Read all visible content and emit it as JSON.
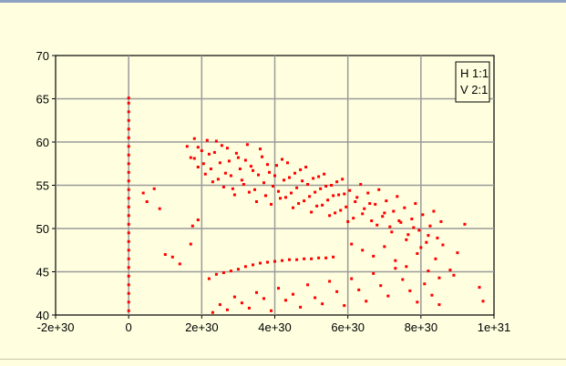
{
  "chart_data": {
    "type": "scatter",
    "title": "",
    "xlabel": "",
    "ylabel": "",
    "xlim": [
      -2e+30,
      1e+31
    ],
    "ylim": [
      40,
      70
    ],
    "x_ticks": [
      -2e+30,
      0,
      2e+30,
      4e+30,
      6e+30,
      8e+30,
      1e+31
    ],
    "x_tick_labels": [
      "-2e+30",
      "0",
      "2e+30",
      "4e+30",
      "6e+30",
      "8e+30",
      "1e+31"
    ],
    "y_ticks": [
      40,
      45,
      50,
      55,
      60,
      65,
      70
    ],
    "y_tick_labels": [
      "40",
      "45",
      "50",
      "55",
      "60",
      "65",
      "70"
    ],
    "grid": true,
    "point_color": "#ff0000",
    "legend": {
      "position": "top-right",
      "lines": [
        "H  1:1",
        "V  2:1"
      ]
    },
    "series": [
      {
        "points": [
          [
            0,
            40.5
          ],
          [
            0,
            41.5
          ],
          [
            0,
            42.5
          ],
          [
            0,
            43.5
          ],
          [
            0,
            44.5
          ],
          [
            0,
            45.5
          ],
          [
            0,
            46.5
          ],
          [
            0,
            47.5
          ],
          [
            0,
            48.5
          ],
          [
            0,
            49.5
          ],
          [
            0,
            50.5
          ],
          [
            0,
            51.5
          ],
          [
            0,
            52.5
          ],
          [
            0,
            53.5
          ],
          [
            0,
            54.5
          ],
          [
            0,
            55.5
          ],
          [
            0,
            56.5
          ],
          [
            0,
            57.5
          ],
          [
            0,
            58.5
          ],
          [
            0,
            59.5
          ],
          [
            0,
            60.5
          ],
          [
            0,
            61.5
          ],
          [
            0,
            62.5
          ],
          [
            0,
            63.5
          ],
          [
            0,
            64.5
          ],
          [
            0,
            65.1
          ],
          [
            1.6e+30,
            59.5
          ],
          [
            1.7e+30,
            58.2
          ],
          [
            1.8e+30,
            60.4
          ],
          [
            1.9e+30,
            57.1
          ],
          [
            2e+30,
            59.0
          ],
          [
            2.1e+30,
            56.3
          ],
          [
            2.2e+30,
            58.6
          ],
          [
            2.3e+30,
            55.4
          ],
          [
            2.4e+30,
            60.1
          ],
          [
            2.5e+30,
            57.6
          ],
          [
            2.6e+30,
            54.8
          ],
          [
            2.7e+30,
            59.3
          ],
          [
            2.8e+30,
            56.1
          ],
          [
            2.9e+30,
            53.9
          ],
          [
            3e+30,
            58.2
          ],
          [
            3.1e+30,
            55.6
          ],
          [
            3.2e+30,
            57.9
          ],
          [
            3.3e+30,
            54.2
          ],
          [
            3.4e+30,
            56.7
          ],
          [
            3.5e+30,
            53.1
          ],
          [
            3.6e+30,
            59.2
          ],
          [
            3.7e+30,
            55.3
          ],
          [
            3.8e+30,
            57.4
          ],
          [
            3.9e+30,
            52.8
          ],
          [
            4e+30,
            56.1
          ],
          [
            4.1e+30,
            54.3
          ],
          [
            4.2e+30,
            58.0
          ],
          [
            4.3e+30,
            53.6
          ],
          [
            4.4e+30,
            55.9
          ],
          [
            4.5e+30,
            52.4
          ],
          [
            4.6e+30,
            54.7
          ],
          [
            4.7e+30,
            56.8
          ],
          [
            4.8e+30,
            53.2
          ],
          [
            4.9e+30,
            55.1
          ],
          [
            5e+30,
            51.9
          ],
          [
            5.1e+30,
            54.2
          ],
          [
            5.2e+30,
            56.0
          ],
          [
            5.3e+30,
            52.7
          ],
          [
            5.4e+30,
            54.9
          ],
          [
            5.5e+30,
            51.5
          ],
          [
            5.6e+30,
            53.8
          ],
          [
            5.7e+30,
            55.4
          ],
          [
            5.8e+30,
            52.1
          ],
          [
            5.9e+30,
            54.0
          ],
          [
            6e+30,
            50.8
          ],
          [
            6.2e+30,
            53.1
          ],
          [
            6.4e+30,
            51.7
          ],
          [
            6.6e+30,
            52.9
          ],
          [
            6.8e+30,
            50.4
          ],
          [
            7e+30,
            51.8
          ],
          [
            7.2e+30,
            49.6
          ],
          [
            7.4e+30,
            50.9
          ],
          [
            7.6e+30,
            48.7
          ],
          [
            7.8e+30,
            50.1
          ],
          [
            8e+30,
            47.8
          ],
          [
            8.2e+30,
            49.2
          ],
          [
            8.4e+30,
            46.5
          ],
          [
            8.6e+30,
            48.1
          ],
          [
            9e+30,
            47.2
          ],
          [
            9.2e+30,
            50.5
          ],
          [
            9.6e+30,
            43.2
          ],
          [
            9.7e+30,
            41.6
          ],
          [
            1.8e+30,
            58.1
          ],
          [
            1.9e+30,
            59.4
          ],
          [
            2.05e+30,
            57.5
          ],
          [
            2.15e+30,
            60.2
          ],
          [
            2.25e+30,
            56.9
          ],
          [
            2.35e+30,
            58.8
          ],
          [
            2.45e+30,
            55.7
          ],
          [
            2.55e+30,
            59.6
          ],
          [
            2.65e+30,
            56.4
          ],
          [
            2.75e+30,
            57.8
          ],
          [
            2.85e+30,
            54.6
          ],
          [
            2.95e+30,
            58.7
          ],
          [
            3.05e+30,
            56.9
          ],
          [
            3.15e+30,
            55.1
          ],
          [
            3.25e+30,
            59.7
          ],
          [
            3.35e+30,
            57.2
          ],
          [
            3.45e+30,
            54.5
          ],
          [
            3.55e+30,
            56.2
          ],
          [
            3.65e+30,
            58.3
          ],
          [
            3.75e+30,
            53.8
          ],
          [
            3.85e+30,
            56.5
          ],
          [
            3.95e+30,
            54.9
          ],
          [
            4.05e+30,
            57.3
          ],
          [
            4.15e+30,
            53.5
          ],
          [
            4.25e+30,
            55.6
          ],
          [
            4.35e+30,
            57.6
          ],
          [
            4.45e+30,
            54.1
          ],
          [
            4.55e+30,
            56.4
          ],
          [
            4.65e+30,
            52.9
          ],
          [
            4.75e+30,
            55.5
          ],
          [
            4.85e+30,
            57.1
          ],
          [
            4.95e+30,
            53.7
          ],
          [
            5.05e+30,
            55.8
          ],
          [
            5.15e+30,
            52.6
          ],
          [
            5.25e+30,
            54.6
          ],
          [
            5.35e+30,
            56.3
          ],
          [
            5.45e+30,
            53.3
          ],
          [
            5.55e+30,
            55.0
          ],
          [
            5.65e+30,
            51.8
          ],
          [
            5.75e+30,
            53.9
          ],
          [
            5.85e+30,
            55.7
          ],
          [
            5.95e+30,
            52.5
          ],
          [
            6.05e+30,
            54.4
          ],
          [
            6.15e+30,
            51.2
          ],
          [
            6.25e+30,
            53.6
          ],
          [
            6.35e+30,
            55.1
          ],
          [
            6.45e+30,
            52.3
          ],
          [
            6.55e+30,
            54.1
          ],
          [
            6.65e+30,
            50.9
          ],
          [
            6.75e+30,
            52.8
          ],
          [
            6.85e+30,
            54.5
          ],
          [
            6.95e+30,
            51.4
          ],
          [
            7.05e+30,
            53.2
          ],
          [
            7.15e+30,
            50.2
          ],
          [
            7.25e+30,
            52.0
          ],
          [
            7.35e+30,
            53.7
          ],
          [
            7.45e+30,
            50.7
          ],
          [
            7.55e+30,
            52.4
          ],
          [
            7.65e+30,
            49.3
          ],
          [
            7.75e+30,
            51.1
          ],
          [
            7.85e+30,
            52.9
          ],
          [
            7.95e+30,
            49.8
          ],
          [
            8.05e+30,
            51.6
          ],
          [
            8.15e+30,
            48.4
          ],
          [
            8.25e+30,
            50.3
          ],
          [
            8.35e+30,
            52.0
          ],
          [
            8.45e+30,
            48.9
          ],
          [
            8.55e+30,
            50.8
          ],
          [
            2.2e+30,
            44.2
          ],
          [
            2.4e+30,
            44.7
          ],
          [
            2.6e+30,
            44.9
          ],
          [
            2.8e+30,
            45.1
          ],
          [
            3e+30,
            45.3
          ],
          [
            3.2e+30,
            45.6
          ],
          [
            3.4e+30,
            45.8
          ],
          [
            3.6e+30,
            46.0
          ],
          [
            3.8e+30,
            46.1
          ],
          [
            4e+30,
            46.2
          ],
          [
            4.2e+30,
            46.3
          ],
          [
            4.4e+30,
            46.4
          ],
          [
            4.6e+30,
            46.4
          ],
          [
            4.8e+30,
            46.5
          ],
          [
            5e+30,
            46.5
          ],
          [
            5.2e+30,
            46.6
          ],
          [
            5.4e+30,
            46.6
          ],
          [
            5.6e+30,
            46.7
          ],
          [
            2.3e+30,
            40.3
          ],
          [
            2.5e+30,
            41.2
          ],
          [
            2.7e+30,
            40.6
          ],
          [
            2.9e+30,
            42.1
          ],
          [
            3.1e+30,
            41.4
          ],
          [
            3.3e+30,
            40.8
          ],
          [
            3.5e+30,
            42.6
          ],
          [
            3.7e+30,
            41.9
          ],
          [
            3.9e+30,
            40.5
          ],
          [
            4.1e+30,
            43.1
          ],
          [
            4.3e+30,
            41.7
          ],
          [
            4.5e+30,
            42.4
          ],
          [
            4.7e+30,
            40.9
          ],
          [
            4.9e+30,
            43.5
          ],
          [
            5.1e+30,
            42.0
          ],
          [
            5.3e+30,
            41.3
          ],
          [
            5.5e+30,
            43.9
          ],
          [
            5.7e+30,
            42.7
          ],
          [
            5.9e+30,
            41.1
          ],
          [
            6.1e+30,
            44.2
          ],
          [
            6.3e+30,
            42.9
          ],
          [
            6.5e+30,
            41.6
          ],
          [
            6.7e+30,
            44.8
          ],
          [
            6.9e+30,
            43.4
          ],
          [
            7.1e+30,
            42.2
          ],
          [
            7.3e+30,
            45.4
          ],
          [
            7.5e+30,
            44.1
          ],
          [
            7.7e+30,
            42.8
          ],
          [
            7.9e+30,
            41.5
          ],
          [
            8.1e+30,
            43.6
          ],
          [
            8.3e+30,
            42.3
          ],
          [
            8.5e+30,
            41.2
          ],
          [
            6.1e+30,
            48.2
          ],
          [
            6.4e+30,
            47.5
          ],
          [
            6.7e+30,
            46.8
          ],
          [
            7e+30,
            47.9
          ],
          [
            7.3e+30,
            46.3
          ],
          [
            7.6e+30,
            45.6
          ],
          [
            7.9e+30,
            47.1
          ],
          [
            8.2e+30,
            45.1
          ],
          [
            8.5e+30,
            44.3
          ],
          [
            8.8e+30,
            45.2
          ],
          [
            8.9e+30,
            44.6
          ],
          [
            1e+30,
            47.0
          ],
          [
            1.2e+30,
            46.7
          ],
          [
            1.4e+30,
            45.9
          ],
          [
            1.7e+30,
            48.2
          ],
          [
            8.5e+29,
            52.3
          ],
          [
            7e+29,
            54.6
          ],
          [
            5e+29,
            53.1
          ],
          [
            4e+29,
            54.1
          ],
          [
            1.9e+30,
            51.0
          ],
          [
            1.75e+30,
            50.3
          ]
        ]
      }
    ]
  }
}
